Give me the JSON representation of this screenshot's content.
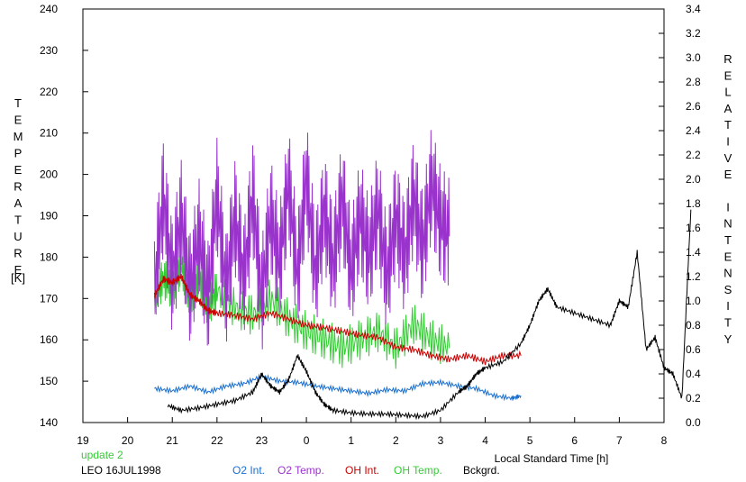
{
  "chart_data": {
    "type": "line",
    "xlabel": "Local Standard Time [h]",
    "x_ticks": [
      "19",
      "20",
      "21",
      "22",
      "23",
      "0",
      "1",
      "2",
      "3",
      "4",
      "5",
      "6",
      "7",
      "8"
    ],
    "xlim": [
      19,
      32
    ],
    "ylabel_left": "TEMPERATURE",
    "ylabel_left_unit": "[K]",
    "ylim_left": [
      140,
      240
    ],
    "y_ticks_left": [
      140,
      150,
      160,
      170,
      180,
      190,
      200,
      210,
      220,
      230,
      240
    ],
    "ylabel_right": "RELATIVE INTENSITY",
    "ylim_right": [
      0,
      3.4
    ],
    "y_ticks_right": [
      "0.0",
      "0.2",
      "0.4",
      "0.6",
      "0.8",
      "1.0",
      "1.2",
      "1.4",
      "1.6",
      "1.8",
      "2.0",
      "2.2",
      "2.4",
      "2.6",
      "2.8",
      "3.0",
      "3.2",
      "3.4"
    ],
    "annotation": "update 2",
    "station_label": "LEO 16JUL1998",
    "grid": false,
    "legend_position": "bottom",
    "series": [
      {
        "name": "O2 Int.",
        "axis": "right",
        "color": "#1a6fd0",
        "x": [
          20.6,
          21.0,
          21.4,
          21.8,
          22.2,
          22.6,
          23.0,
          23.4,
          23.8,
          24.2,
          24.6,
          25.0,
          25.4,
          25.8,
          26.2,
          26.6,
          27.0,
          27.4,
          27.8,
          28.2,
          28.6,
          28.8
        ],
        "y": [
          0.28,
          0.26,
          0.3,
          0.25,
          0.3,
          0.32,
          0.38,
          0.34,
          0.33,
          0.3,
          0.28,
          0.26,
          0.24,
          0.27,
          0.26,
          0.32,
          0.33,
          0.3,
          0.28,
          0.22,
          0.2,
          0.22
        ]
      },
      {
        "name": "O2 Temp.",
        "axis": "left",
        "color": "#9933cc",
        "x": [
          20.6,
          20.8,
          21.0,
          21.2,
          21.4,
          21.6,
          21.8,
          22.0,
          22.2,
          22.4,
          22.6,
          22.8,
          23.0,
          23.2,
          23.4,
          23.6,
          23.8,
          24.0,
          24.2,
          24.4,
          24.6,
          24.8,
          25.0,
          25.2,
          25.4,
          25.6,
          25.8,
          26.0,
          26.2,
          26.4,
          26.6,
          26.8,
          27.0,
          27.2
        ],
        "y": [
          172,
          195,
          175,
          190,
          172,
          185,
          170,
          195,
          172,
          190,
          175,
          195,
          170,
          190,
          178,
          198,
          175,
          200,
          176,
          192,
          178,
          195,
          176,
          190,
          180,
          192,
          175,
          190,
          180,
          195,
          182,
          198,
          188,
          185
        ]
      },
      {
        "name": "OH Int.",
        "axis": "right",
        "color": "#cc0000",
        "x": [
          20.6,
          20.8,
          21.0,
          21.2,
          21.4,
          21.6,
          21.8,
          22.0,
          22.4,
          22.8,
          23.2,
          23.6,
          24.0,
          24.4,
          24.8,
          25.2,
          25.6,
          26.0,
          26.4,
          26.8,
          27.2,
          27.6,
          28.0,
          28.4,
          28.8
        ],
        "y": [
          1.04,
          1.18,
          1.15,
          1.2,
          1.05,
          1.0,
          0.92,
          0.9,
          0.88,
          0.85,
          0.9,
          0.85,
          0.8,
          0.78,
          0.75,
          0.72,
          0.7,
          0.62,
          0.6,
          0.55,
          0.52,
          0.55,
          0.5,
          0.55,
          0.55
        ]
      },
      {
        "name": "OH Temp.",
        "axis": "left",
        "color": "#33cc33",
        "x": [
          20.6,
          20.8,
          21.0,
          21.2,
          21.4,
          21.6,
          21.8,
          22.0,
          22.4,
          22.8,
          23.2,
          23.6,
          24.0,
          24.4,
          24.8,
          25.2,
          25.6,
          26.0,
          26.4,
          26.8,
          27.2
        ],
        "y": [
          170,
          175,
          172,
          178,
          170,
          175,
          168,
          172,
          168,
          166,
          170,
          165,
          162,
          160,
          158,
          160,
          162,
          158,
          164,
          160,
          158
        ]
      },
      {
        "name": "Bckgrd.",
        "axis": "right",
        "color": "#000000",
        "x": [
          20.9,
          21.2,
          21.6,
          22.0,
          22.4,
          22.8,
          23.0,
          23.2,
          23.4,
          23.6,
          23.8,
          24.0,
          24.2,
          24.4,
          24.6,
          25.0,
          25.4,
          25.8,
          26.2,
          26.6,
          27.0,
          27.4,
          27.6,
          27.8,
          28.0,
          28.4,
          28.8,
          29.0,
          29.2,
          29.4,
          29.6,
          30.0,
          30.4,
          30.8,
          31.0,
          31.2,
          31.4,
          31.6,
          31.8,
          32.0,
          32.2,
          32.4,
          32.6
        ],
        "y": [
          0.14,
          0.1,
          0.12,
          0.15,
          0.18,
          0.25,
          0.4,
          0.3,
          0.25,
          0.35,
          0.55,
          0.42,
          0.25,
          0.15,
          0.1,
          0.08,
          0.07,
          0.07,
          0.06,
          0.05,
          0.1,
          0.25,
          0.3,
          0.4,
          0.45,
          0.5,
          0.65,
          0.8,
          1.0,
          1.1,
          0.95,
          0.9,
          0.85,
          0.8,
          1.0,
          0.95,
          1.4,
          0.6,
          0.7,
          0.45,
          0.4,
          0.2,
          1.75
        ]
      }
    ],
    "bg_stub": {
      "x": [
        19.9,
        20.3
      ],
      "y": [
        0.0,
        0.0
      ]
    }
  }
}
